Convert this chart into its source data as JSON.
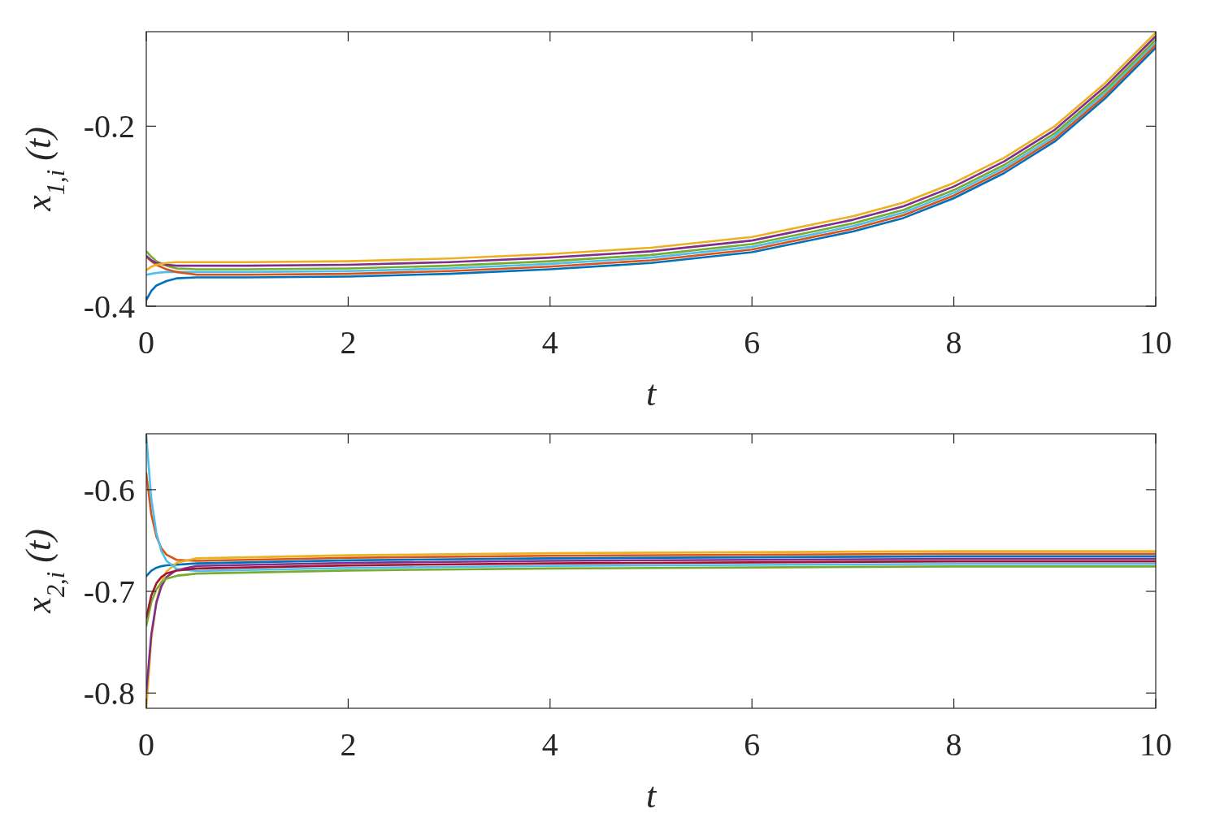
{
  "chart_data": [
    {
      "type": "line",
      "xlabel": "t",
      "ylabel": "x$_{1,i}$(t)",
      "xlim": [
        0,
        10
      ],
      "xticks": [
        0,
        2,
        4,
        6,
        8,
        10
      ],
      "ylim": [
        -0.4,
        -0.095
      ],
      "yticks": [
        -0.4,
        -0.2
      ],
      "x": [
        0,
        0.05,
        0.1,
        0.2,
        0.3,
        0.5,
        1,
        2,
        3,
        4,
        5,
        6,
        7,
        7.5,
        8,
        8.5,
        9,
        9.5,
        10
      ],
      "series": [
        {
          "color": "#0072bd",
          "values": [
            -0.393,
            -0.383,
            -0.377,
            -0.372,
            -0.369,
            -0.368,
            -0.368,
            -0.367,
            -0.364,
            -0.359,
            -0.352,
            -0.34,
            -0.317,
            -0.302,
            -0.28,
            -0.252,
            -0.217,
            -0.169,
            -0.113
          ]
        },
        {
          "color": "#4dbeee",
          "values": [
            -0.365,
            -0.364,
            -0.363,
            -0.362,
            -0.362,
            -0.362,
            -0.362,
            -0.361,
            -0.358,
            -0.353,
            -0.346,
            -0.334,
            -0.311,
            -0.296,
            -0.274,
            -0.246,
            -0.211,
            -0.163,
            -0.107
          ]
        },
        {
          "color": "#77ac30",
          "values": [
            -0.339,
            -0.345,
            -0.35,
            -0.355,
            -0.358,
            -0.359,
            -0.359,
            -0.358,
            -0.355,
            -0.35,
            -0.343,
            -0.331,
            -0.308,
            -0.293,
            -0.271,
            -0.243,
            -0.208,
            -0.16,
            -0.104
          ]
        },
        {
          "color": "#d95319",
          "values": [
            -0.345,
            -0.35,
            -0.354,
            -0.359,
            -0.362,
            -0.365,
            -0.365,
            -0.364,
            -0.361,
            -0.356,
            -0.349,
            -0.337,
            -0.314,
            -0.299,
            -0.277,
            -0.249,
            -0.214,
            -0.166,
            -0.11
          ]
        },
        {
          "color": "#7e2f8e",
          "values": [
            -0.344,
            -0.349,
            -0.352,
            -0.354,
            -0.355,
            -0.355,
            -0.355,
            -0.354,
            -0.351,
            -0.346,
            -0.339,
            -0.327,
            -0.304,
            -0.289,
            -0.267,
            -0.239,
            -0.204,
            -0.156,
            -0.1
          ]
        },
        {
          "color": "#edb120",
          "values": [
            -0.36,
            -0.356,
            -0.354,
            -0.352,
            -0.351,
            -0.351,
            -0.351,
            -0.35,
            -0.347,
            -0.342,
            -0.335,
            -0.323,
            -0.3,
            -0.285,
            -0.263,
            -0.235,
            -0.2,
            -0.152,
            -0.096
          ]
        }
      ]
    },
    {
      "type": "line",
      "xlabel": "t",
      "ylabel": "x$_{2,i}$(t)",
      "xlim": [
        0,
        10
      ],
      "xticks": [
        0,
        2,
        4,
        6,
        8,
        10
      ],
      "ylim": [
        -0.815,
        -0.545
      ],
      "yticks": [
        -0.8,
        -0.7,
        -0.6
      ],
      "x": [
        0,
        0.05,
        0.1,
        0.15,
        0.2,
        0.3,
        0.5,
        1,
        2,
        4,
        6,
        8,
        10
      ],
      "series": [
        {
          "color": "#0072bd",
          "values": [
            -0.685,
            -0.6797,
            -0.6768,
            -0.6753,
            -0.6744,
            -0.6738,
            -0.6725,
            -0.6715,
            -0.6695,
            -0.6675,
            -0.6665,
            -0.6655,
            -0.6655
          ]
        },
        {
          "color": "#d95319",
          "values": [
            -0.584,
            -0.6245,
            -0.646,
            -0.6577,
            -0.6639,
            -0.669,
            -0.67,
            -0.669,
            -0.667,
            -0.665,
            -0.664,
            -0.663,
            -0.663
          ]
        },
        {
          "color": "#edb120",
          "values": [
            -0.815,
            -0.7469,
            -0.7105,
            -0.6909,
            -0.6805,
            -0.6719,
            -0.6675,
            -0.6665,
            -0.6645,
            -0.6625,
            -0.6615,
            -0.6605,
            -0.6605
          ]
        },
        {
          "color": "#7e2f8e",
          "values": [
            -0.799,
            -0.742,
            -0.711,
            -0.695,
            -0.686,
            -0.679,
            -0.675,
            -0.674,
            -0.672,
            -0.67,
            -0.669,
            -0.668,
            -0.668
          ]
        },
        {
          "color": "#77ac30",
          "values": [
            -0.734,
            -0.7105,
            -0.698,
            -0.6912,
            -0.6876,
            -0.6847,
            -0.6825,
            -0.6815,
            -0.6795,
            -0.6775,
            -0.6765,
            -0.6755,
            -0.6755
          ]
        },
        {
          "color": "#4dbeee",
          "values": [
            -0.547,
            -0.6093,
            -0.6425,
            -0.6605,
            -0.67,
            -0.6779,
            -0.68,
            -0.679,
            -0.677,
            -0.675,
            -0.674,
            -0.673,
            -0.673
          ]
        },
        {
          "color": "#a2142f",
          "values": [
            -0.726,
            -0.7039,
            -0.6921,
            -0.6858,
            -0.6824,
            -0.6796,
            -0.6775,
            -0.6765,
            -0.6745,
            -0.6725,
            -0.6715,
            -0.6705,
            -0.6705
          ]
        }
      ]
    }
  ]
}
